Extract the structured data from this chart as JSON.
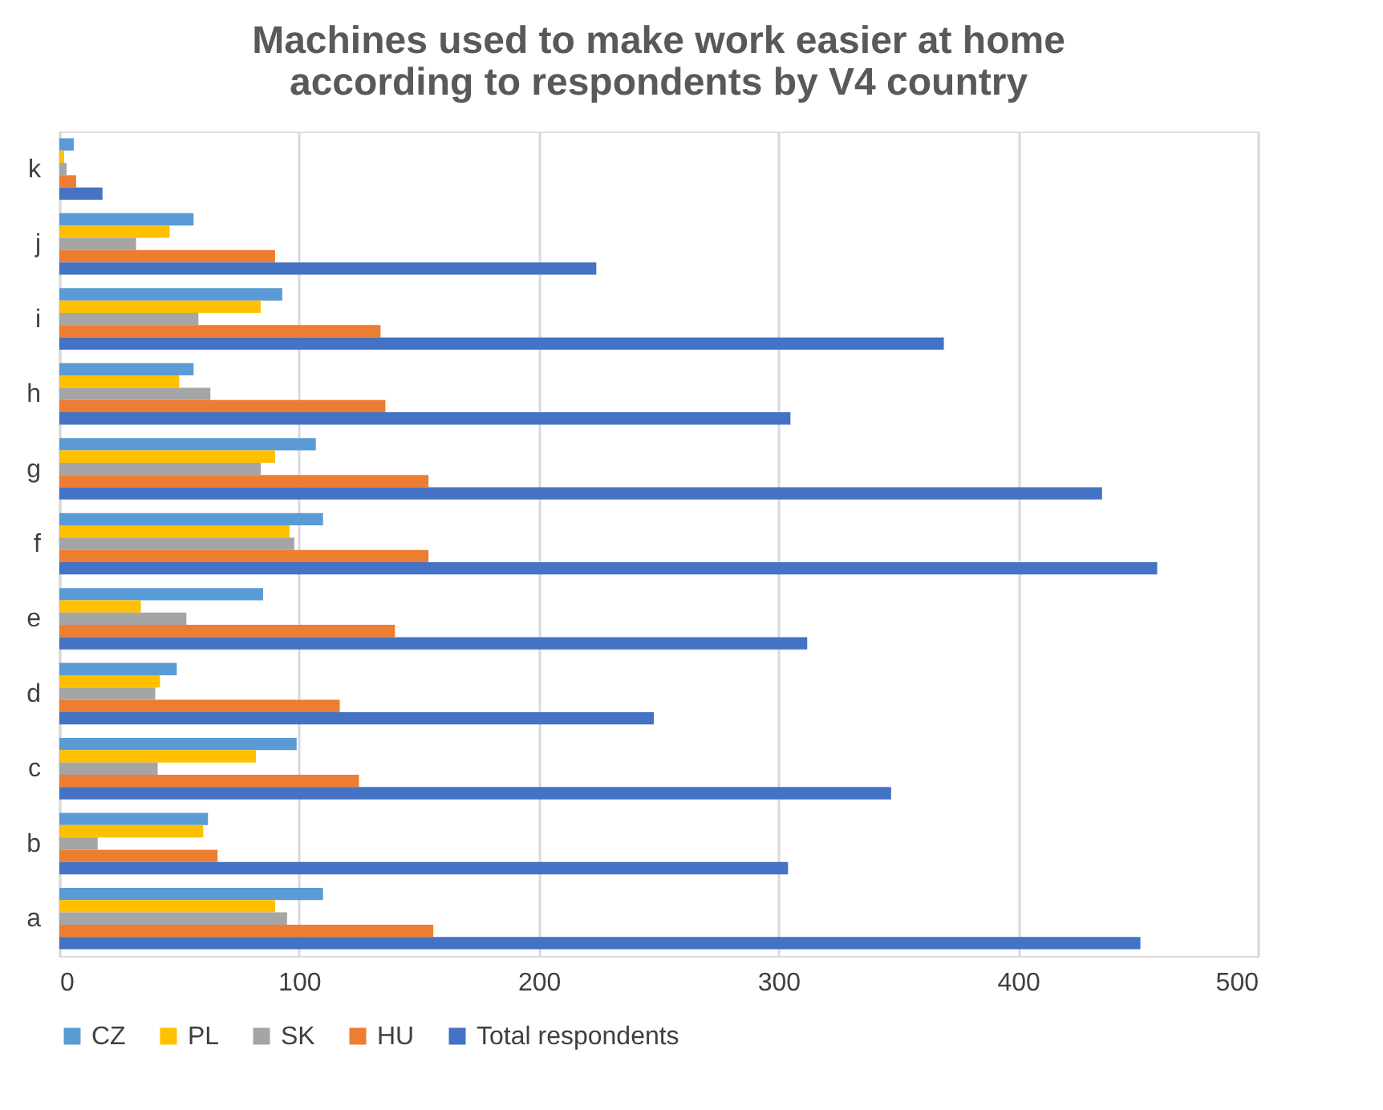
{
  "chart_data": {
    "type": "bar",
    "orientation": "horizontal",
    "title": "Machines used to make work easier at home\naccording to respondents by V4 country",
    "categories": [
      "k",
      "j",
      "i",
      "h",
      "g",
      "f",
      "e",
      "d",
      "c",
      "b",
      "a"
    ],
    "series": [
      {
        "name": "CZ",
        "color": "#5b9bd5",
        "values": [
          6,
          56,
          93,
          56,
          107,
          110,
          85,
          49,
          99,
          62,
          110
        ]
      },
      {
        "name": "PL",
        "color": "#ffc000",
        "values": [
          2,
          46,
          84,
          50,
          90,
          96,
          34,
          42,
          82,
          60,
          90
        ]
      },
      {
        "name": "SK",
        "color": "#a5a5a5",
        "values": [
          3,
          32,
          58,
          63,
          84,
          98,
          53,
          40,
          41,
          16,
          95
        ]
      },
      {
        "name": "HU",
        "color": "#ed7d31",
        "values": [
          7,
          90,
          134,
          136,
          154,
          154,
          140,
          117,
          125,
          66,
          156
        ]
      },
      {
        "name": "Total respondents",
        "color": "#4472c4",
        "values": [
          18,
          224,
          369,
          305,
          435,
          458,
          312,
          248,
          347,
          304,
          451
        ]
      }
    ],
    "xlim": [
      0,
      500
    ],
    "xticks": [
      0,
      100,
      200,
      300,
      400,
      500
    ],
    "grid": "x",
    "legend": "bottom"
  }
}
